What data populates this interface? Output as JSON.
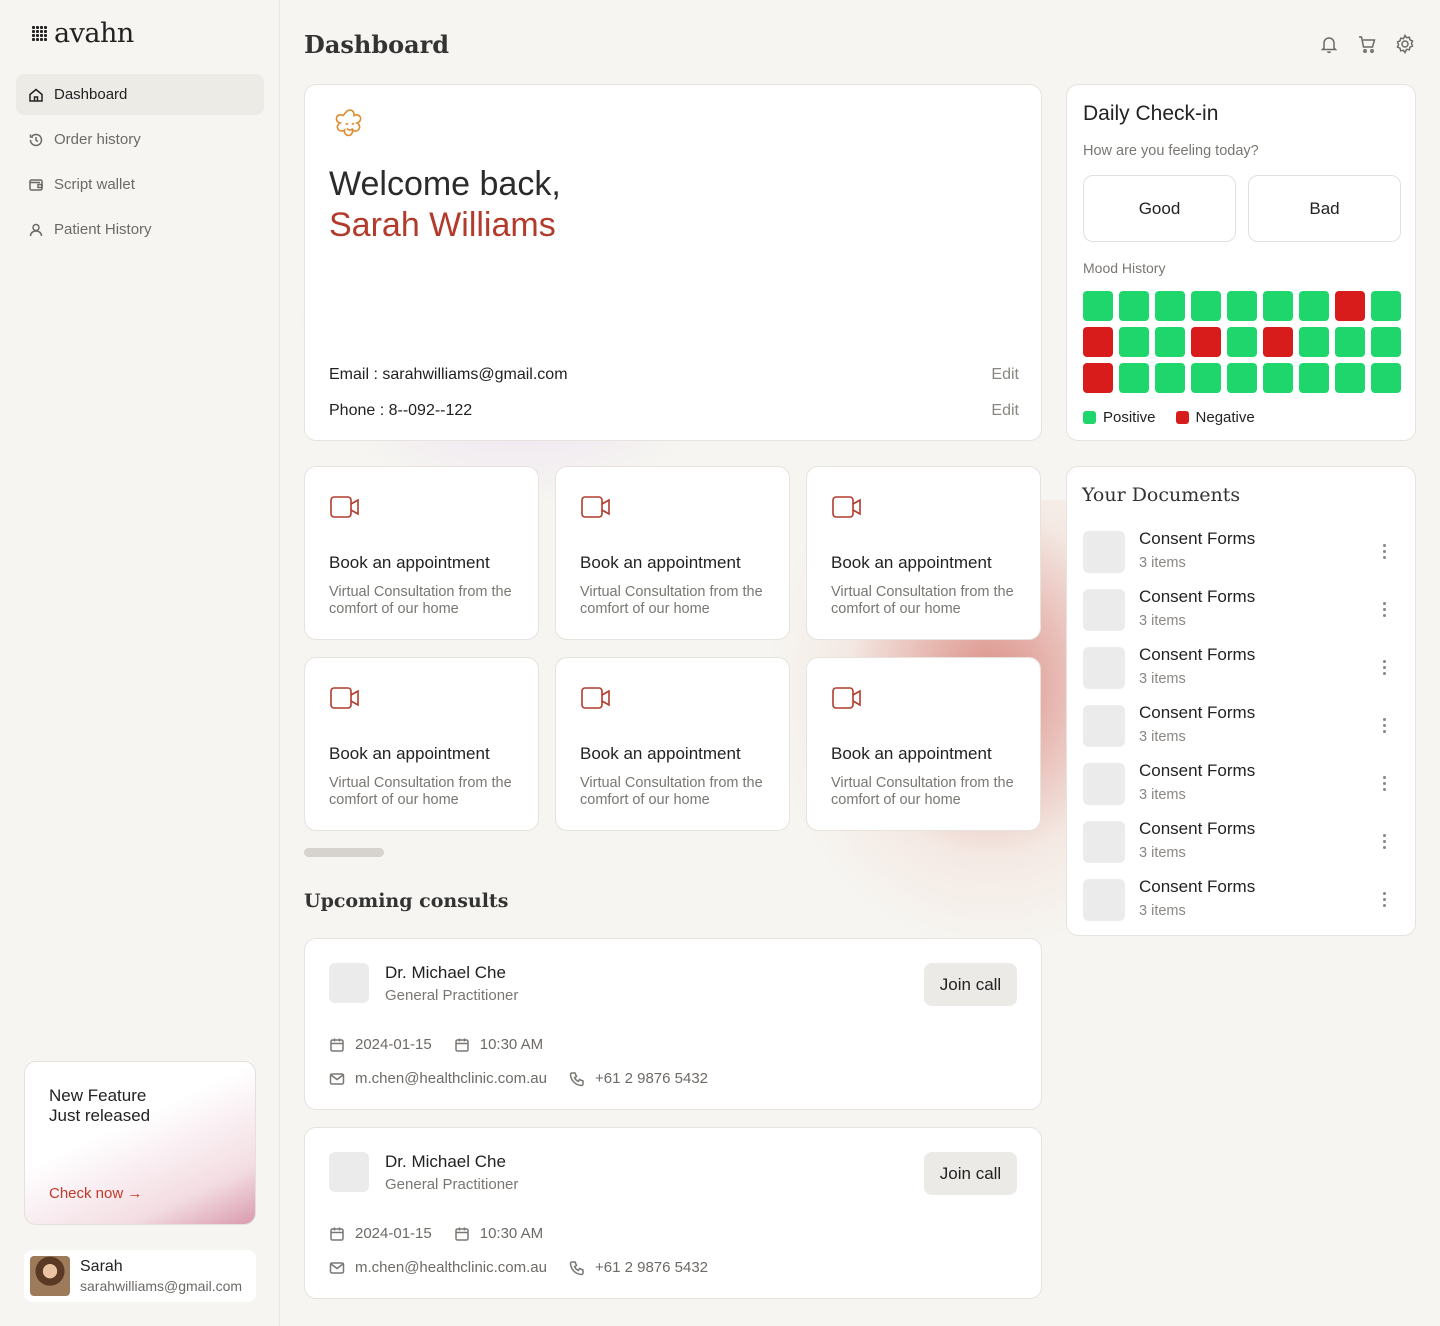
{
  "brand": {
    "name": "avahn"
  },
  "sidebar": {
    "items": [
      {
        "label": "Dashboard",
        "icon": "home-icon",
        "active": true
      },
      {
        "label": "Order history",
        "icon": "history-icon",
        "active": false
      },
      {
        "label": "Script wallet",
        "icon": "wallet-icon",
        "active": false
      },
      {
        "label": "Patient History",
        "icon": "user-icon",
        "active": false
      }
    ],
    "feature": {
      "title_line1": "New Feature",
      "title_line2": "Just released",
      "link": "Check now →"
    },
    "user": {
      "name": "Sarah",
      "email": "sarahwilliams@gmail.com"
    }
  },
  "header": {
    "title": "Dashboard",
    "icons": [
      "bell-icon",
      "cart-icon",
      "settings-icon"
    ]
  },
  "welcome": {
    "greeting": "Welcome back,",
    "name": "Sarah Williams",
    "email_label": "Email : sarahwilliams@gmail.com",
    "phone_label": "Phone : 8--092--122",
    "edit_label": "Edit",
    "accent": "#b23b2c"
  },
  "appointments": [
    {
      "title": "Book an appointment",
      "subtitle": "Virtual Consultation from the comfort of our home"
    },
    {
      "title": "Book an appointment",
      "subtitle": "Virtual Consultation from the comfort of our home"
    },
    {
      "title": "Book an appointment",
      "subtitle": "Virtual Consultation from the comfort of our home"
    },
    {
      "title": "Book an appointment",
      "subtitle": "Virtual Consultation from the comfort of our home"
    },
    {
      "title": "Book an appointment",
      "subtitle": "Virtual Consultation from the comfort of our home"
    },
    {
      "title": "Book an appointment",
      "subtitle": "Virtual Consultation from the comfort of our home"
    }
  ],
  "consults": {
    "title": "Upcoming consults",
    "items": [
      {
        "doctor": "Dr. Michael Che",
        "role": "General Practitioner",
        "button": "Join call",
        "date": "2024-01-15",
        "time": "10:30 AM",
        "email": "m.chen@healthclinic.com.au",
        "phone": "+61 2 9876 5432"
      },
      {
        "doctor": "Dr. Michael Che",
        "role": "General Practitioner",
        "button": "Join call",
        "date": "2024-01-15",
        "time": "10:30 AM",
        "email": "m.chen@healthclinic.com.au",
        "phone": "+61 2 9876 5432"
      }
    ]
  },
  "checkin": {
    "title": "Daily Check-in",
    "question": "How are you feeling today?",
    "good": "Good",
    "bad": "Bad",
    "history_label": "Mood History",
    "positive_label": "Positive",
    "negative_label": "Negative",
    "positive_color": "#1ed66c",
    "negative_color": "#d81b1b",
    "mood_grid": [
      [
        "p",
        "p",
        "p",
        "p",
        "p",
        "p",
        "p",
        "n",
        "p"
      ],
      [
        "n",
        "p",
        "p",
        "n",
        "p",
        "n",
        "p",
        "p",
        "p"
      ],
      [
        "n",
        "p",
        "p",
        "p",
        "p",
        "p",
        "p",
        "p",
        "p"
      ]
    ]
  },
  "documents": {
    "title": "Your Documents",
    "items": [
      {
        "name": "Consent Forms",
        "count": "3 items"
      },
      {
        "name": "Consent Forms",
        "count": "3 items"
      },
      {
        "name": "Consent Forms",
        "count": "3 items"
      },
      {
        "name": "Consent Forms",
        "count": "3 items"
      },
      {
        "name": "Consent Forms",
        "count": "3 items"
      },
      {
        "name": "Consent Forms",
        "count": "3 items"
      },
      {
        "name": "Consent Forms",
        "count": "3 items"
      }
    ]
  }
}
